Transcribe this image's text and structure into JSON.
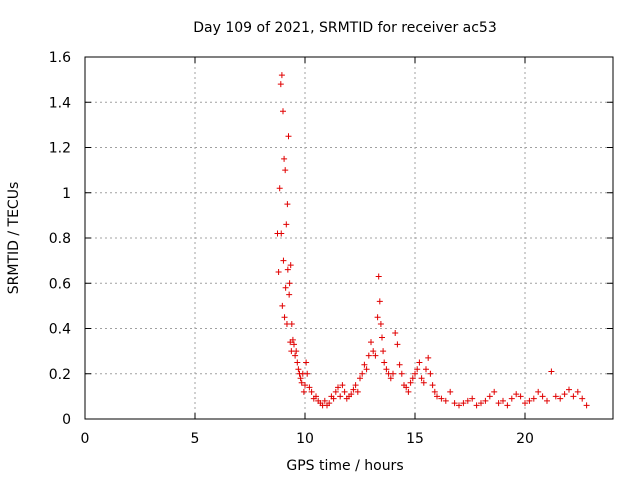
{
  "chart_data": {
    "type": "scatter",
    "title": "Day 109 of 2021, SRMTID for receiver ac53",
    "xlabel": "GPS time / hours",
    "ylabel": "SRMTID / TECUs",
    "xlim": [
      0,
      24
    ],
    "ylim": [
      0,
      1.6
    ],
    "xticks": [
      0,
      5,
      10,
      15,
      20
    ],
    "yticks": [
      0,
      0.2,
      0.4,
      0.6,
      0.8,
      1,
      1.2,
      1.4,
      1.6
    ],
    "ytick_labels": [
      "0",
      "0.2",
      "0.4",
      "0.6",
      "0.8",
      "1",
      "1.2",
      "1.4",
      "1.6"
    ],
    "grid": true,
    "marker": "+",
    "color": "#e00000",
    "series": [
      {
        "name": "SRMTID",
        "x": [
          8.75,
          8.8,
          8.85,
          8.9,
          8.92,
          8.95,
          8.97,
          9.0,
          9.02,
          9.05,
          9.07,
          9.1,
          9.12,
          9.15,
          9.18,
          9.2,
          9.22,
          9.25,
          9.28,
          9.3,
          9.33,
          9.35,
          9.38,
          9.4,
          9.45,
          9.5,
          9.55,
          9.6,
          9.65,
          9.7,
          9.75,
          9.8,
          9.85,
          9.9,
          9.95,
          10.0,
          10.05,
          10.1,
          10.2,
          10.3,
          10.4,
          10.5,
          10.6,
          10.7,
          10.8,
          10.9,
          11.0,
          11.1,
          11.2,
          11.3,
          11.4,
          11.5,
          11.6,
          11.7,
          11.8,
          11.9,
          12.0,
          12.1,
          12.2,
          12.3,
          12.4,
          12.5,
          12.6,
          12.7,
          12.8,
          12.9,
          13.0,
          13.1,
          13.2,
          13.3,
          13.35,
          13.4,
          13.45,
          13.5,
          13.55,
          13.6,
          13.7,
          13.8,
          13.9,
          14.0,
          14.1,
          14.2,
          14.3,
          14.4,
          14.5,
          14.6,
          14.7,
          14.8,
          14.9,
          15.0,
          15.1,
          15.2,
          15.3,
          15.4,
          15.5,
          15.6,
          15.7,
          15.8,
          15.9,
          16.0,
          16.2,
          16.4,
          16.6,
          16.8,
          17.0,
          17.2,
          17.4,
          17.6,
          17.8,
          18.0,
          18.2,
          18.4,
          18.6,
          18.8,
          19.0,
          19.2,
          19.4,
          19.6,
          19.8,
          20.0,
          20.2,
          20.4,
          20.6,
          20.8,
          21.0,
          21.2,
          21.4,
          21.6,
          21.8,
          22.0,
          22.2,
          22.4,
          22.6,
          22.8
        ],
        "y": [
          0.82,
          0.65,
          1.02,
          1.48,
          0.82,
          1.52,
          0.5,
          1.36,
          0.7,
          1.15,
          0.45,
          1.1,
          0.58,
          0.86,
          0.42,
          0.95,
          0.66,
          1.25,
          0.55,
          0.6,
          0.34,
          0.68,
          0.3,
          0.42,
          0.35,
          0.33,
          0.28,
          0.3,
          0.25,
          0.22,
          0.2,
          0.18,
          0.16,
          0.2,
          0.12,
          0.15,
          0.25,
          0.2,
          0.14,
          0.12,
          0.09,
          0.1,
          0.08,
          0.07,
          0.06,
          0.08,
          0.06,
          0.07,
          0.1,
          0.09,
          0.12,
          0.14,
          0.1,
          0.15,
          0.12,
          0.09,
          0.1,
          0.11,
          0.13,
          0.15,
          0.12,
          0.18,
          0.2,
          0.24,
          0.22,
          0.28,
          0.34,
          0.3,
          0.28,
          0.45,
          0.63,
          0.52,
          0.42,
          0.36,
          0.3,
          0.25,
          0.22,
          0.2,
          0.18,
          0.2,
          0.38,
          0.33,
          0.24,
          0.2,
          0.15,
          0.14,
          0.12,
          0.16,
          0.18,
          0.2,
          0.22,
          0.25,
          0.18,
          0.16,
          0.22,
          0.27,
          0.2,
          0.15,
          0.12,
          0.1,
          0.09,
          0.08,
          0.12,
          0.07,
          0.06,
          0.07,
          0.08,
          0.09,
          0.06,
          0.07,
          0.08,
          0.1,
          0.12,
          0.07,
          0.08,
          0.06,
          0.09,
          0.11,
          0.1,
          0.07,
          0.08,
          0.09,
          0.12,
          0.1,
          0.08,
          0.21,
          0.1,
          0.09,
          0.11,
          0.13,
          0.1,
          0.12,
          0.09,
          0.06
        ]
      }
    ]
  }
}
